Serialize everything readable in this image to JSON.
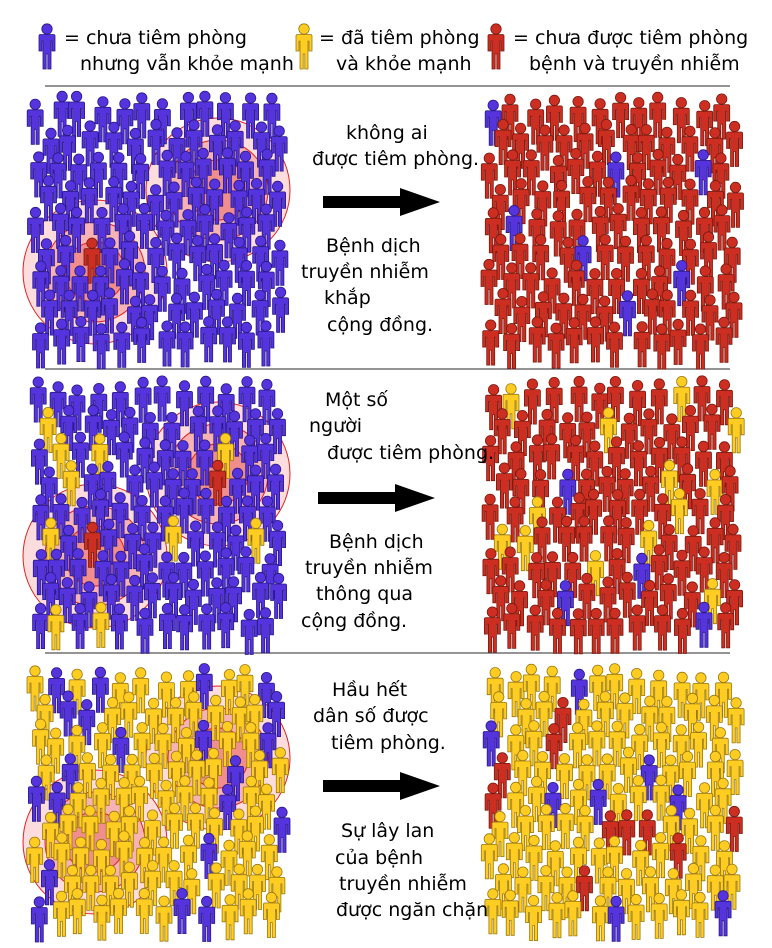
{
  "legend": {
    "unvaccinated_healthy": {
      "line1": "= chưa tiêm phòng",
      "line2": "nhưng vẫn khỏe mạnh",
      "color": "#5533dd"
    },
    "vaccinated_healthy": {
      "line1": "= đã tiêm phòng",
      "line2": "và khỏe mạnh",
      "color": "#ffcc22"
    },
    "sick": {
      "line1": "= chưa được tiêm phòng",
      "line2": "bệnh và truyền nhiễm",
      "color": "#cc2e22"
    }
  },
  "colors": {
    "unvaccinated": "#5533dd",
    "vaccinated": "#ffcc22",
    "sick": "#cc2e22",
    "arrow": "#000000",
    "divider": "#555555",
    "infection_zone": "#f5a5a5",
    "infection_ring": "#e02020"
  },
  "panels": [
    {
      "caption_top": [
        "không ai",
        "được tiêm phòng."
      ],
      "caption_bottom": [
        "Bệnh dịch",
        "truyền nhiễm",
        "khắp",
        "cộng đồng."
      ]
    },
    {
      "caption_top": [
        "Một số",
        "người",
        "được tiêm phòng."
      ],
      "caption_bottom": [
        "Bệnh dịch",
        "truyền nhiễm",
        "thông qua",
        "cộng đồng."
      ]
    },
    {
      "caption_top": [
        "Hầu hết",
        "dân số được",
        "tiêm phòng."
      ],
      "caption_bottom": [
        "Sự lây lan",
        "của bệnh",
        "truyền nhiễm",
        "được ngăn chặn"
      ]
    }
  ]
}
